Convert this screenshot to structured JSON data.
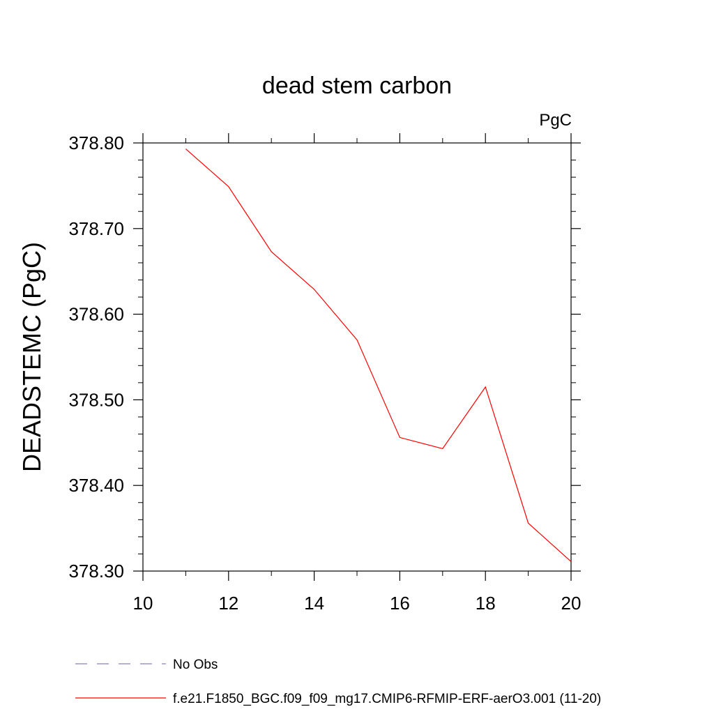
{
  "chart_data": {
    "type": "line",
    "title": "dead stem carbon",
    "units": "PgC",
    "ylabel": "DEADSTEMC  (PgC)",
    "xlabel": "",
    "xlim": [
      10,
      20
    ],
    "ylim": [
      378.3,
      378.8
    ],
    "x_ticks": [
      "10",
      "12",
      "14",
      "16",
      "18",
      "20"
    ],
    "y_ticks": [
      "378.30",
      "378.40",
      "378.50",
      "378.60",
      "378.70",
      "378.80"
    ],
    "series": [
      {
        "name": "f.e21.F1850_BGC.f09_f09_mg17.CMIP6-RFMIP-ERF-aerO3.001 (11-20)",
        "color": "#ff0000",
        "style": "solid",
        "x": [
          11,
          12,
          13,
          14,
          15,
          16,
          17,
          18,
          19,
          20
        ],
        "values": [
          378.793,
          378.749,
          378.673,
          378.629,
          378.57,
          378.456,
          378.443,
          378.515,
          378.356,
          378.311
        ]
      }
    ],
    "legend": [
      {
        "label": "No Obs",
        "color": "#8a7fbf",
        "style": "dashed"
      },
      {
        "label": "f.e21.F1850_BGC.f09_f09_mg17.CMIP6-RFMIP-ERF-aerO3.001 (11-20)",
        "color": "#ff0000",
        "style": "solid"
      }
    ]
  }
}
